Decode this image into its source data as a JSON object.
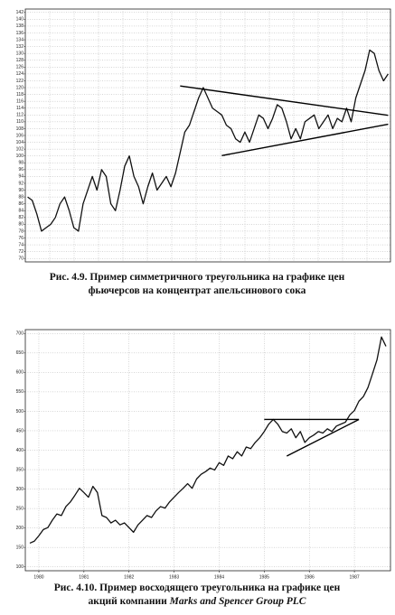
{
  "chart_data": [
    {
      "type": "line",
      "color": "#111",
      "grid": true,
      "caption": [
        [
          "Рис. 4.9. Пример симметричного треугольника на графике цен"
        ],
        [
          "фьючерсов на концентрат апельсинового сока"
        ]
      ],
      "categories": [
        null,
        null,
        null,
        null,
        null,
        null,
        null,
        null,
        null,
        null,
        null,
        null,
        null,
        null,
        null,
        null,
        null,
        null,
        null,
        null,
        null,
        null,
        null,
        null,
        null,
        null,
        null,
        null,
        null,
        null,
        null,
        null,
        null,
        null,
        null,
        null,
        null,
        null,
        null,
        null,
        null,
        null,
        null,
        null,
        null,
        null,
        null,
        null,
        null,
        null,
        null,
        null,
        null,
        null,
        null,
        null,
        null,
        null,
        null,
        null,
        null,
        null,
        null,
        null,
        null,
        null,
        null,
        null,
        null,
        null,
        null,
        null,
        null,
        null,
        null,
        null,
        null,
        null,
        null
      ],
      "values": [
        88,
        87,
        83,
        78,
        79,
        80,
        82,
        86,
        88,
        84,
        79,
        78,
        86,
        90,
        94,
        90,
        96,
        94,
        86,
        84,
        90,
        97,
        100,
        94,
        91,
        86,
        91,
        95,
        90,
        92,
        94,
        91,
        95,
        101,
        107,
        109,
        113,
        117,
        120,
        117,
        114,
        113,
        112,
        109,
        108,
        105,
        104,
        107,
        104,
        108,
        112,
        111,
        108,
        111,
        115,
        114,
        110,
        105,
        108,
        105,
        110,
        111,
        112,
        108,
        110,
        112,
        108,
        111,
        110,
        114,
        110,
        117,
        121,
        125,
        131,
        130,
        125,
        122,
        124
      ],
      "ylim": [
        69,
        143
      ],
      "yticks": [
        70,
        72,
        74,
        76,
        78,
        80,
        82,
        84,
        86,
        88,
        90,
        92,
        94,
        96,
        98,
        100,
        102,
        104,
        106,
        108,
        110,
        112,
        114,
        116,
        118,
        120,
        122,
        124,
        126,
        128,
        130,
        132,
        134,
        136,
        138,
        140,
        142
      ],
      "trendlines": [
        {
          "x": [
            33,
            78
          ],
          "y": [
            120.5,
            111.9
          ]
        },
        {
          "x": [
            42,
            78
          ],
          "y": [
            100.1,
            109.3
          ]
        }
      ]
    },
    {
      "type": "line",
      "color": "#111",
      "grid": true,
      "caption": [
        [
          "Рис. 4.10. Пример восходящего треугольника на графике цен"
        ],
        [
          "акций компании ",
          "Marks and Spencer Group PLC"
        ]
      ],
      "x": [
        1979.8,
        1979.9,
        1980.0,
        1980.1,
        1980.2,
        1980.3,
        1980.4,
        1980.5,
        1980.6,
        1980.7,
        1980.8,
        1980.9,
        1981.0,
        1981.1,
        1981.2,
        1981.3,
        1981.4,
        1981.5,
        1981.6,
        1981.7,
        1981.8,
        1981.9,
        1982.0,
        1982.1,
        1982.2,
        1982.3,
        1982.4,
        1982.5,
        1982.6,
        1982.7,
        1982.8,
        1982.9,
        1983.0,
        1983.1,
        1983.2,
        1983.3,
        1983.4,
        1983.5,
        1983.6,
        1983.7,
        1983.8,
        1983.9,
        1984.0,
        1984.1,
        1984.2,
        1984.3,
        1984.4,
        1984.5,
        1984.6,
        1984.7,
        1984.8,
        1984.9,
        1985.0,
        1985.1,
        1985.2,
        1985.3,
        1985.4,
        1985.5,
        1985.6,
        1985.7,
        1985.8,
        1985.9,
        1986.0,
        1986.1,
        1986.2,
        1986.3,
        1986.4,
        1986.5,
        1986.6,
        1986.7,
        1986.8,
        1986.9,
        1987.0,
        1987.1,
        1987.2,
        1987.3,
        1987.4,
        1987.5,
        1987.6,
        1987.7
      ],
      "values": [
        161,
        166,
        180,
        196,
        201,
        220,
        236,
        232,
        255,
        267,
        284,
        302,
        291,
        279,
        307,
        291,
        232,
        227,
        213,
        220,
        208,
        213,
        201,
        189,
        208,
        220,
        232,
        227,
        244,
        255,
        251,
        267,
        279,
        291,
        302,
        314,
        302,
        326,
        338,
        345,
        354,
        349,
        368,
        361,
        385,
        378,
        396,
        385,
        408,
        404,
        420,
        432,
        448,
        467,
        479,
        467,
        448,
        444,
        455,
        432,
        448,
        420,
        432,
        439,
        448,
        444,
        455,
        448,
        462,
        467,
        472,
        491,
        502,
        526,
        538,
        561,
        596,
        632,
        691,
        667
      ],
      "xlim": [
        1979.7,
        1987.8
      ],
      "xticks": [
        1980,
        1981,
        1982,
        1983,
        1984,
        1985,
        1986,
        1987
      ],
      "ylim": [
        90,
        710
      ],
      "yticks": [
        100,
        150,
        200,
        250,
        300,
        350,
        400,
        450,
        500,
        550,
        600,
        650,
        700
      ],
      "trendlines": [
        {
          "x": [
            1985.0,
            1987.1
          ],
          "y": [
            479,
            479
          ]
        },
        {
          "x": [
            1985.5,
            1987.1
          ],
          "y": [
            385,
            479
          ]
        }
      ]
    }
  ]
}
